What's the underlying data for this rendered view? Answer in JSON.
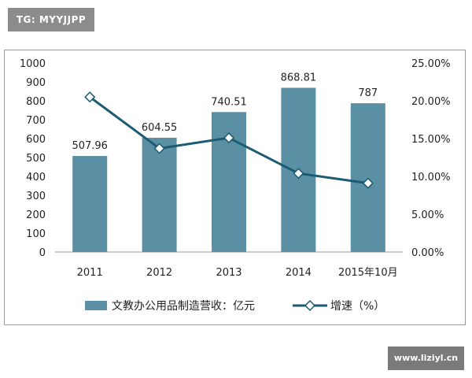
{
  "watermark": {
    "tag": "TG: MYYJJPP",
    "site": "www.liziyl.cn"
  },
  "chart_data": {
    "type": "bar",
    "categories": [
      "2011",
      "2012",
      "2013",
      "2014",
      "2015年10月"
    ],
    "series": [
      {
        "name": "文教办公用品制造营收：亿元",
        "type": "bar",
        "axis": "left",
        "values": [
          507.96,
          604.55,
          740.51,
          868.81,
          787
        ],
        "labels": [
          "507.96",
          "604.55",
          "740.51",
          "868.81",
          "787"
        ]
      },
      {
        "name": "增速（%）",
        "type": "line",
        "axis": "right",
        "values": [
          20.5,
          13.7,
          15.1,
          10.4,
          9.1
        ]
      }
    ],
    "ylim_left": [
      0,
      1000
    ],
    "yticks_left": [
      "0",
      "100",
      "200",
      "300",
      "400",
      "500",
      "600",
      "700",
      "800",
      "900",
      "1000"
    ],
    "ylim_right": [
      0,
      25
    ],
    "yticks_right": [
      "0.00%",
      "5.00%",
      "10.00%",
      "15.00%",
      "20.00%",
      "25.00%"
    ],
    "grid": false,
    "legend_position": "bottom",
    "colors": {
      "bar": "#5b8fa3",
      "line": "#1d5a73"
    }
  }
}
